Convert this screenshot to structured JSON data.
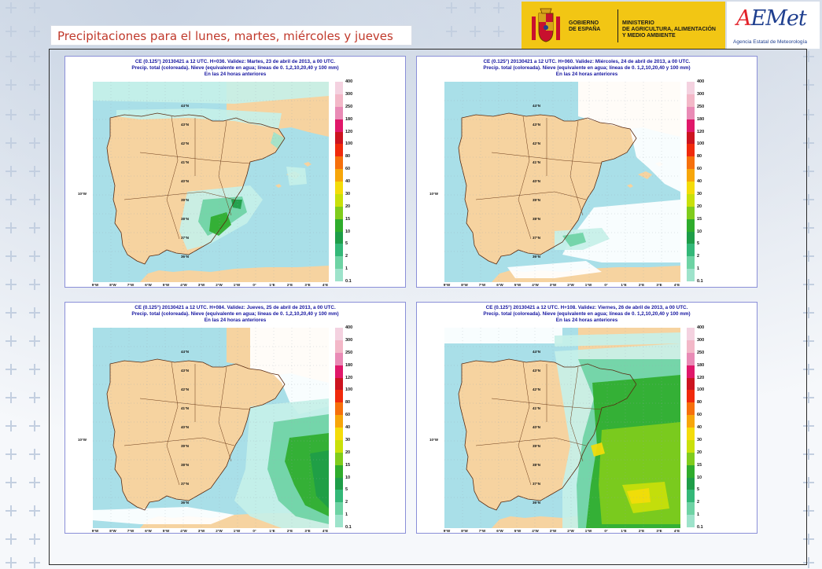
{
  "page": {
    "title": "Precipitaciones para el lunes, martes, miércoles y jueves"
  },
  "header": {
    "gov_line1": "GOBIERNO",
    "gov_line2": "DE ESPAÑA",
    "ministry_line1": "MINISTERIO",
    "ministry_line2": "DE AGRICULTURA, ALIMENTACIÓN",
    "ministry_line3": "Y MEDIO AMBIENTE",
    "brand": "AEMet",
    "brand_sub": "Agencia Estatal de Meteorología"
  },
  "colors": {
    "title_text": "#c0392b",
    "gov_banner": "#f2c614",
    "panel_border": "#8a8fd8",
    "panel_title": "#1515a0",
    "land": "#f6d3a0",
    "sea": "#a9dfe8"
  },
  "legend": {
    "labels": [
      "400",
      "300",
      "250",
      "180",
      "120",
      "100",
      "80",
      "60",
      "40",
      "30",
      "20",
      "15",
      "10",
      "5",
      "2",
      "1",
      "0.1"
    ],
    "colors": [
      "#f4d2e0",
      "#f3b8c8",
      "#e98bb6",
      "#e0186a",
      "#cc1420",
      "#f02a0c",
      "#f6700c",
      "#f7a60a",
      "#f4dc0a",
      "#c9e00a",
      "#80cc1c",
      "#2fac2c",
      "#1e9d48",
      "#34b878",
      "#6ed3a4",
      "#9ee3cb",
      "#c6f0e8"
    ]
  },
  "axis": {
    "lon_labels": [
      "9°W",
      "8°W",
      "7°W",
      "6°W",
      "5°W",
      "4°W",
      "3°W",
      "2°W",
      "1°W",
      "0°",
      "1°E",
      "2°E",
      "3°E",
      "4°E"
    ],
    "lat_labels": [
      "44°N",
      "43°N",
      "42°N",
      "41°N",
      "40°N",
      "39°N",
      "38°N",
      "37°N",
      "36°N"
    ],
    "ref_lon": "10°W"
  },
  "panels": [
    {
      "title_line1": "CE (0.125°) 20130421 a 12 UTC.  H+036. Validez: Martes, 23 de abril de 2013,  a  00 UTC.",
      "title_line2": "Precip. total (coloreada). Nieve (equivalente en agua; líneas de 0. 1,2,10,20,40 y 100 mm)",
      "title_line3": "En las 24 horas anteriores"
    },
    {
      "title_line1": "CE (0.125°) 20130421 a 12 UTC.  H+060. Validez: Miércoles, 24 de abril de 2013,  a  00 UTC.",
      "title_line2": "Precip. total (coloreada). Nieve (equivalente en agua; líneas de 0. 1,2,10,20,40 y 100 mm)",
      "title_line3": "En las 24 horas anteriores"
    },
    {
      "title_line1": "CE (0.125°) 20130421 a 12 UTC.  H+084. Validez: Jueves, 25 de abril de 2013,  a  00 UTC.",
      "title_line2": "Precip. total (coloreada). Nieve (equivalente en agua; líneas de 0. 1,2,10,20,40 y 100 mm)",
      "title_line3": "En las 24 horas anteriores"
    },
    {
      "title_line1": "CE (0.125°) 20130421 a 12 UTC.  H+108. Validez: Viernes, 26 de abril de 2013,  a  00 UTC.",
      "title_line2": "Precip. total (coloreada). Nieve (equivalente en agua; líneas de 0. 1,2,10,20,40 y 100 mm)",
      "title_line3": "En las 24 horas anteriores"
    }
  ]
}
